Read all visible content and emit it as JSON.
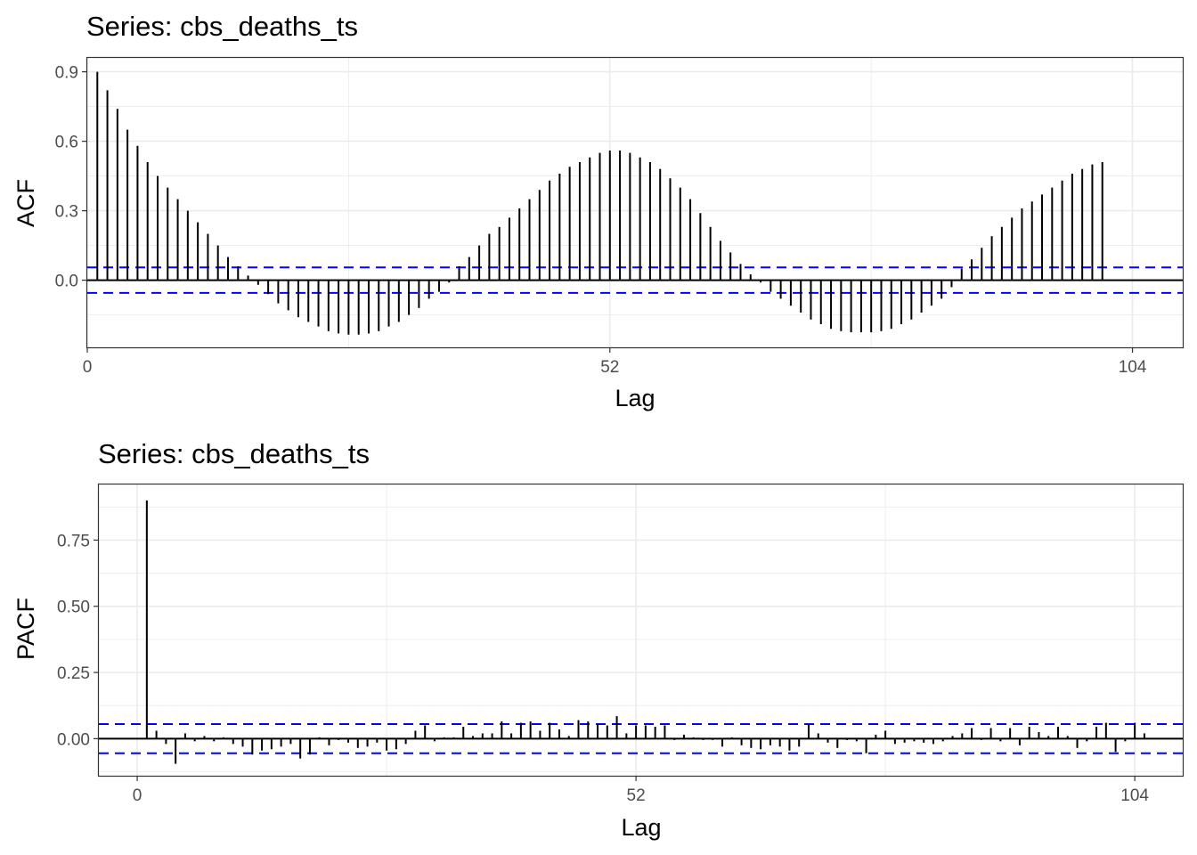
{
  "chart_data": [
    {
      "type": "bar",
      "title": "Series: cbs_deaths_ts",
      "xlabel": "Lag",
      "ylabel": "ACF",
      "x_ticks": [
        0,
        52,
        104
      ],
      "y_ticks": [
        "0.0",
        "0.3",
        "0.6",
        "0.9"
      ],
      "xlim": [
        0,
        109
      ],
      "ylim": [
        -0.29,
        0.96
      ],
      "grid": true,
      "ci": 0.055,
      "lags": [
        1,
        2,
        3,
        4,
        5,
        6,
        7,
        8,
        9,
        10,
        11,
        12,
        13,
        14,
        15,
        16,
        17,
        18,
        19,
        20,
        21,
        22,
        23,
        24,
        25,
        26,
        27,
        28,
        29,
        30,
        31,
        32,
        33,
        34,
        35,
        36,
        37,
        38,
        39,
        40,
        41,
        42,
        43,
        44,
        45,
        46,
        47,
        48,
        49,
        50,
        51,
        52,
        53,
        54,
        55,
        56,
        57,
        58,
        59,
        60,
        61,
        62,
        63,
        64,
        65,
        66,
        67,
        68,
        69,
        70,
        71,
        72,
        73,
        74,
        75,
        76,
        77,
        78,
        79,
        80,
        81,
        82,
        83,
        84,
        85,
        86,
        87,
        88,
        89,
        90,
        91,
        92,
        93,
        94,
        95,
        96,
        97,
        98,
        99,
        100,
        101,
        102,
        103,
        104,
        105
      ],
      "values": [
        0.9,
        0.82,
        0.74,
        0.65,
        0.58,
        0.51,
        0.45,
        0.4,
        0.35,
        0.3,
        0.25,
        0.2,
        0.15,
        0.1,
        0.06,
        0.02,
        -0.02,
        -0.06,
        -0.1,
        -0.13,
        -0.16,
        -0.18,
        -0.2,
        -0.22,
        -0.23,
        -0.235,
        -0.235,
        -0.23,
        -0.22,
        -0.2,
        -0.18,
        -0.15,
        -0.12,
        -0.08,
        -0.05,
        -0.01,
        0.06,
        0.1,
        0.15,
        0.2,
        0.23,
        0.27,
        0.31,
        0.35,
        0.39,
        0.43,
        0.46,
        0.49,
        0.51,
        0.53,
        0.55,
        0.56,
        0.56,
        0.55,
        0.53,
        0.51,
        0.48,
        0.44,
        0.4,
        0.35,
        0.29,
        0.23,
        0.17,
        0.12,
        0.07,
        0.025,
        -0.01,
        -0.05,
        -0.08,
        -0.11,
        -0.14,
        -0.17,
        -0.19,
        -0.21,
        -0.22,
        -0.225,
        -0.225,
        -0.225,
        -0.22,
        -0.21,
        -0.19,
        -0.17,
        -0.14,
        -0.11,
        -0.08,
        -0.03,
        0.05,
        0.09,
        0.14,
        0.19,
        0.23,
        0.27,
        0.31,
        0.34,
        0.37,
        0.4,
        0.43,
        0.46,
        0.48,
        0.5,
        0.51,
        0.0,
        0.0,
        0.0,
        0.0
      ]
    },
    {
      "type": "bar",
      "title": "Series: cbs_deaths_ts",
      "xlabel": "Lag",
      "ylabel": "PACF",
      "x_ticks": [
        0,
        52,
        104
      ],
      "y_ticks": [
        "0.00",
        "0.25",
        "0.50",
        "0.75"
      ],
      "xlim": [
        -4,
        109
      ],
      "ylim": [
        -0.14,
        0.96
      ],
      "grid": true,
      "ci": 0.055,
      "lags": [
        1,
        2,
        3,
        4,
        5,
        6,
        7,
        8,
        9,
        10,
        11,
        12,
        13,
        14,
        15,
        16,
        17,
        18,
        19,
        20,
        21,
        22,
        23,
        24,
        25,
        26,
        27,
        28,
        29,
        30,
        31,
        32,
        33,
        34,
        35,
        36,
        37,
        38,
        39,
        40,
        41,
        42,
        43,
        44,
        45,
        46,
        47,
        48,
        49,
        50,
        51,
        52,
        53,
        54,
        55,
        56,
        57,
        58,
        59,
        60,
        61,
        62,
        63,
        64,
        65,
        66,
        67,
        68,
        69,
        70,
        71,
        72,
        73,
        74,
        75,
        76,
        77,
        78,
        79,
        80,
        81,
        82,
        83,
        84,
        85,
        86,
        87,
        88,
        89,
        90,
        91,
        92,
        93,
        94,
        95,
        96,
        97,
        98,
        99,
        100,
        101,
        102,
        103,
        104,
        105
      ],
      "values": [
        0.9,
        0.03,
        -0.02,
        -0.095,
        0.02,
        -0.01,
        0.01,
        -0.01,
        0.005,
        -0.02,
        -0.03,
        -0.06,
        -0.045,
        -0.04,
        -0.03,
        -0.02,
        -0.075,
        -0.06,
        0.005,
        -0.025,
        -0.005,
        -0.015,
        -0.035,
        -0.03,
        -0.015,
        -0.045,
        -0.04,
        -0.02,
        0.03,
        0.05,
        -0.01,
        0.005,
        0.005,
        0.045,
        0.01,
        0.02,
        0.02,
        0.065,
        0.02,
        0.06,
        0.065,
        0.03,
        0.06,
        0.035,
        0.01,
        0.07,
        0.065,
        0.055,
        0.05,
        0.085,
        0.02,
        0.05,
        0.05,
        0.045,
        0.05,
        -0.005,
        0.015,
        0.005,
        -0.005,
        -0.005,
        -0.03,
        0.005,
        -0.025,
        -0.035,
        -0.04,
        -0.025,
        -0.03,
        -0.045,
        -0.03,
        0.055,
        0.02,
        -0.015,
        -0.035,
        -0.005,
        -0.01,
        -0.055,
        0.015,
        0.03,
        -0.02,
        -0.015,
        -0.01,
        -0.015,
        -0.02,
        -0.01,
        0.01,
        0.02,
        0.04,
        -0.005,
        0.04,
        -0.01,
        0.04,
        -0.025,
        0.045,
        0.025,
        0.01,
        0.045,
        0.01,
        -0.035,
        -0.01,
        0.045,
        0.06,
        -0.05,
        -0.01,
        0.06,
        0.02
      ]
    }
  ]
}
